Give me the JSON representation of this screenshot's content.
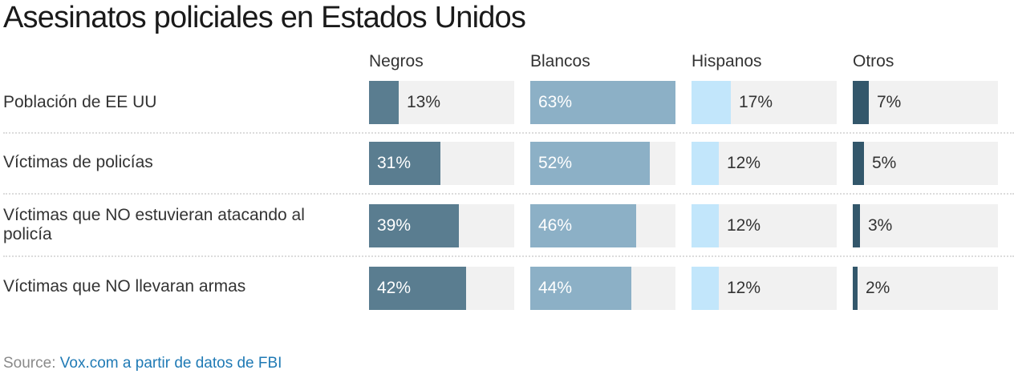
{
  "title": "Asesinatos policiales en Estados Unidos",
  "columns": [
    {
      "label": "Negros",
      "color": "#5a7d90"
    },
    {
      "label": "Blancos",
      "color": "#8cb0c6"
    },
    {
      "label": "Hispanos",
      "color": "#c2e6fb"
    },
    {
      "label": "Otros",
      "color": "#33576b"
    }
  ],
  "rows": [
    {
      "label": "Población de EE UU",
      "values": [
        "13%",
        "63%",
        "17%",
        "7%"
      ]
    },
    {
      "label": "Víctimas de policías",
      "values": [
        "31%",
        "52%",
        "12%",
        "5%"
      ]
    },
    {
      "label": "Víctimas que NO estuvieran atacando al policía",
      "values": [
        "39%",
        "46%",
        "12%",
        "3%"
      ]
    },
    {
      "label": "Víctimas que NO llevaran armas",
      "values": [
        "42%",
        "44%",
        "12%",
        "2%"
      ]
    }
  ],
  "source": {
    "prefix": "Source:",
    "link_text": "Vox.com a partir de datos de FBI"
  },
  "chart_data": {
    "type": "bar",
    "title": "Asesinatos policiales en Estados Unidos",
    "orientation": "horizontal",
    "layout": "small-multiples (one bar per cell, 0-100% scale)",
    "categories": [
      "Población de EE UU",
      "Víctimas de policías",
      "Víctimas que NO estuvieran atacando al policía",
      "Víctimas que NO llevaran armas"
    ],
    "series": [
      {
        "name": "Negros",
        "values": [
          13,
          31,
          39,
          42
        ],
        "color": "#5a7d90"
      },
      {
        "name": "Blancos",
        "values": [
          63,
          52,
          46,
          44
        ],
        "color": "#8cb0c6"
      },
      {
        "name": "Hispanos",
        "values": [
          17,
          12,
          12,
          12
        ],
        "color": "#c2e6fb"
      },
      {
        "name": "Otros",
        "values": [
          7,
          5,
          3,
          2
        ],
        "color": "#33576b"
      }
    ],
    "xlabel": "",
    "ylabel": "",
    "xlim": [
      0,
      63
    ],
    "unit": "%",
    "source": "Source: Vox.com a partir de datos de FBI"
  }
}
